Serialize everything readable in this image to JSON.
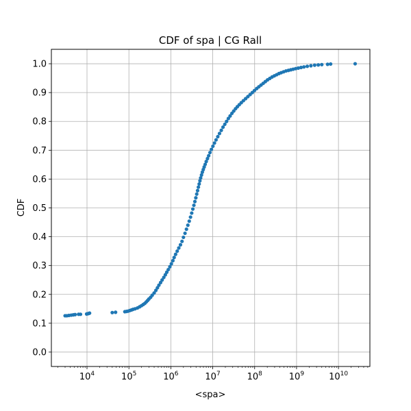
{
  "chart_data": {
    "type": "scatter",
    "title": "CDF of spa | CG Rall",
    "xlabel": "<spa>",
    "ylabel": "CDF",
    "x_scale": "log",
    "x_log10_range": [
      3.15,
      10.75
    ],
    "ylim": [
      -0.05,
      1.05
    ],
    "x_ticks": [
      {
        "base": "10",
        "exp": "4",
        "value": 10000
      },
      {
        "base": "10",
        "exp": "5",
        "value": 100000
      },
      {
        "base": "10",
        "exp": "6",
        "value": 1000000
      },
      {
        "base": "10",
        "exp": "7",
        "value": 10000000
      },
      {
        "base": "10",
        "exp": "8",
        "value": 100000000
      },
      {
        "base": "10",
        "exp": "9",
        "value": 1000000000
      },
      {
        "base": "10",
        "exp": "10",
        "value": 10000000000
      }
    ],
    "y_ticks": [
      "0.0",
      "0.1",
      "0.2",
      "0.3",
      "0.4",
      "0.5",
      "0.6",
      "0.7",
      "0.8",
      "0.9",
      "1.0"
    ],
    "grid": true,
    "marker_color": "#1f77b4",
    "series": [
      {
        "x": [
          3000,
          3300,
          3700,
          4200,
          4700,
          5200,
          6300,
          7000,
          9800,
          10500,
          11000,
          11500,
          40000,
          48000,
          80000,
          88000,
          96000,
          105000,
          115000,
          125000,
          140000,
          160000,
          180000,
          200000,
          220000,
          240000,
          260000,
          280000,
          300000,
          330000,
          360000,
          400000,
          440000,
          480000,
          520000,
          570000,
          620000,
          680000,
          740000,
          800000,
          870000,
          950000,
          1030000,
          1120000,
          1200000,
          1300000,
          1420000,
          1550000,
          1700000,
          1850000,
          2000000,
          2180000,
          2360000,
          2550000,
          2750000,
          2950000,
          3150000,
          3350000,
          3550000,
          3750000,
          3950000,
          4150000,
          4350000,
          4550000,
          4750000,
          4950000,
          5150000,
          5400000,
          5650000,
          5950000,
          6250000,
          6600000,
          7000000,
          7500000,
          8000000,
          8600000,
          9300000,
          10100000,
          11000000,
          12000000,
          13200000,
          14500000,
          16000000,
          17600000,
          19400000,
          21400000,
          23600000,
          26000000,
          28700000,
          31700000,
          35000000,
          38700000,
          43000000,
          48000000,
          54000000,
          61000000,
          69000000,
          78000000,
          88000000,
          99000000,
          112000000,
          126000000,
          142000000,
          160000000,
          180000000,
          203000000,
          230000000,
          260000000,
          295000000,
          335000000,
          380000000,
          430000000,
          490000000,
          560000000,
          640000000,
          730000000,
          830000000,
          950000000,
          1100000000,
          1280000000,
          1500000000,
          1800000000,
          2200000000,
          2700000000,
          3300000000,
          4000000000,
          5500000000,
          6500000000,
          25000000000
        ],
        "y": [
          0.126,
          0.126,
          0.127,
          0.128,
          0.129,
          0.13,
          0.131,
          0.131,
          0.132,
          0.133,
          0.134,
          0.135,
          0.137,
          0.138,
          0.14,
          0.141,
          0.142,
          0.144,
          0.146,
          0.148,
          0.15,
          0.153,
          0.157,
          0.161,
          0.165,
          0.169,
          0.174,
          0.179,
          0.184,
          0.19,
          0.197,
          0.205,
          0.214,
          0.223,
          0.232,
          0.241,
          0.25,
          0.259,
          0.268,
          0.277,
          0.286,
          0.296,
          0.306,
          0.317,
          0.328,
          0.339,
          0.35,
          0.361,
          0.372,
          0.384,
          0.398,
          0.412,
          0.426,
          0.44,
          0.454,
          0.468,
          0.482,
          0.496,
          0.509,
          0.522,
          0.535,
          0.548,
          0.56,
          0.572,
          0.583,
          0.594,
          0.604,
          0.614,
          0.624,
          0.633,
          0.642,
          0.651,
          0.661,
          0.671,
          0.681,
          0.692,
          0.703,
          0.714,
          0.725,
          0.736,
          0.747,
          0.758,
          0.769,
          0.78,
          0.79,
          0.8,
          0.81,
          0.819,
          0.828,
          0.836,
          0.844,
          0.851,
          0.858,
          0.865,
          0.872,
          0.879,
          0.886,
          0.893,
          0.9,
          0.907,
          0.914,
          0.92,
          0.926,
          0.932,
          0.938,
          0.944,
          0.949,
          0.954,
          0.958,
          0.962,
          0.966,
          0.969,
          0.972,
          0.975,
          0.977,
          0.979,
          0.981,
          0.983,
          0.985,
          0.987,
          0.989,
          0.991,
          0.993,
          0.995,
          0.996,
          0.997,
          0.998,
          0.999,
          1.0
        ]
      }
    ]
  }
}
